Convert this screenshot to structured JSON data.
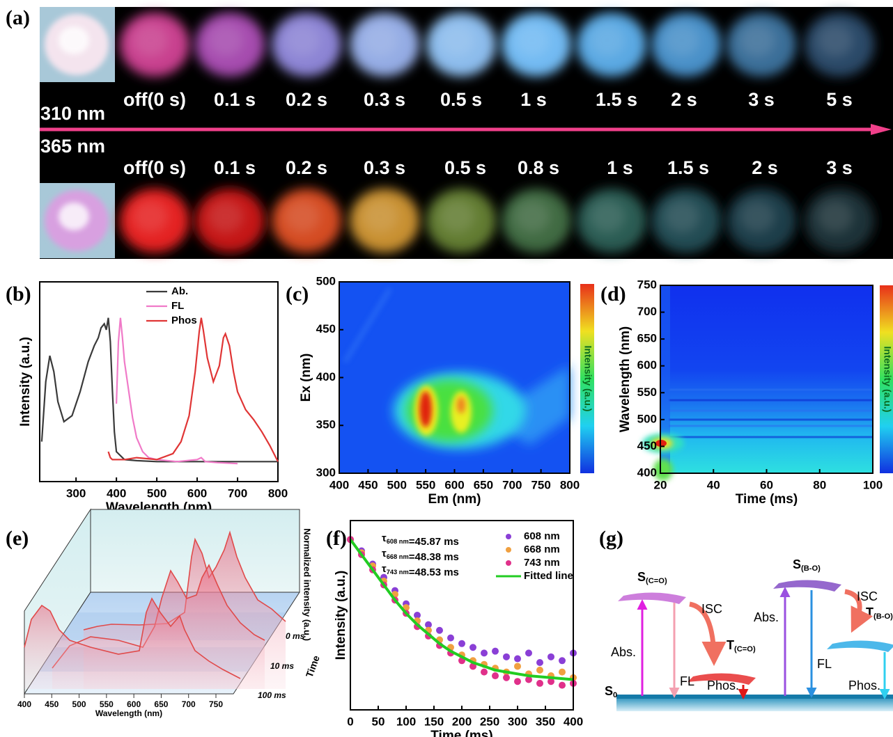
{
  "panel_labels": {
    "a": "(a)",
    "b": "(b)",
    "c": "(c)",
    "d": "(d)",
    "e": "(e)",
    "f": "(f)",
    "g": "(g)"
  },
  "photos": {
    "top_labels": [
      "off(0 s)",
      "0.1 s",
      "0.2 s",
      "0.3 s",
      "0.5 s",
      "1 s",
      "1.5 s",
      "2 s",
      "3 s",
      "5 s"
    ],
    "bottom_labels": [
      "off(0 s)",
      "0.1 s",
      "0.2 s",
      "0.3 s",
      "0.5 s",
      "0.8 s",
      "1 s",
      "1.5 s",
      "2 s",
      "3 s"
    ],
    "wavelength_top": "310 nm",
    "wavelength_bottom": "365 nm"
  },
  "chart_data": [
    {
      "type": "line",
      "xlabel": "Wavelength (nm)",
      "ylabel": "Intensity (a.u.)",
      "xlim": [
        210,
        800
      ],
      "ylim": [
        0,
        1
      ],
      "xticks": [
        300,
        400,
        500,
        600,
        700,
        800
      ],
      "legend": "top-center",
      "series": [
        {
          "name": "Ab.",
          "color": "#3a3a3a",
          "x": [
            215,
            225,
            235,
            245,
            255,
            270,
            290,
            310,
            330,
            345,
            355,
            362,
            370,
            375,
            380,
            385,
            390,
            395,
            400,
            420,
            450,
            500,
            600,
            700,
            800
          ],
          "values": [
            0.2,
            0.5,
            0.63,
            0.55,
            0.4,
            0.3,
            0.33,
            0.45,
            0.6,
            0.68,
            0.72,
            0.77,
            0.79,
            0.76,
            0.82,
            0.7,
            0.46,
            0.25,
            0.15,
            0.11,
            0.105,
            0.1,
            0.1,
            0.1,
            0.1
          ]
        },
        {
          "name": "FL",
          "color": "#f07ac8",
          "x": [
            400,
            405,
            410,
            415,
            420,
            430,
            440,
            450,
            465,
            480,
            500,
            550,
            600,
            610,
            620,
            650,
            700
          ],
          "values": [
            0.39,
            0.7,
            0.82,
            0.72,
            0.6,
            0.46,
            0.32,
            0.22,
            0.15,
            0.12,
            0.11,
            0.1,
            0.11,
            0.12,
            0.1,
            0.095,
            0.09
          ]
        },
        {
          "name": "Phos",
          "color": "#e03535",
          "x": [
            380,
            385,
            390,
            420,
            450,
            500,
            540,
            560,
            580,
            595,
            605,
            610,
            615,
            625,
            640,
            655,
            665,
            670,
            680,
            690,
            700,
            720,
            740,
            760,
            780,
            800
          ],
          "values": [
            0.15,
            0.12,
            0.11,
            0.11,
            0.12,
            0.11,
            0.14,
            0.2,
            0.33,
            0.55,
            0.75,
            0.82,
            0.76,
            0.62,
            0.5,
            0.58,
            0.72,
            0.74,
            0.68,
            0.55,
            0.45,
            0.36,
            0.31,
            0.25,
            0.18,
            0.1
          ]
        }
      ]
    },
    {
      "type": "heatmap",
      "xlabel": "Em (nm)",
      "ylabel": "Ex (nm)",
      "colorbar_label": "Intensity (a.u.)",
      "xlim": [
        400,
        800
      ],
      "ylim": [
        300,
        500
      ],
      "xticks": [
        400,
        450,
        500,
        550,
        600,
        650,
        700,
        750,
        800
      ],
      "yticks": [
        300,
        350,
        400,
        450,
        500
      ]
    },
    {
      "type": "heatmap",
      "xlabel": "Time (ms)",
      "ylabel": "Wavelength (nm)",
      "colorbar_label": "Intensity (a.u.)",
      "xlim": [
        20,
        100
      ],
      "ylim": [
        400,
        750
      ],
      "xticks": [
        20,
        40,
        60,
        80,
        100
      ],
      "yticks": [
        400,
        450,
        500,
        550,
        600,
        650,
        700,
        750
      ]
    },
    {
      "type": "waterfall",
      "xlabel": "Wavelength (nm)",
      "zlabel": "Normalized intensity (a.u.)",
      "ylabel": "Time",
      "xlim": [
        400,
        750
      ],
      "xticks": [
        400,
        450,
        500,
        550,
        600,
        650,
        700,
        750
      ],
      "time_labels": [
        "0 ms",
        "10 ms",
        "100 ms"
      ]
    },
    {
      "type": "scatter",
      "xlabel": "Time (ms)",
      "ylabel": "Intensity (a.u.)",
      "xlim": [
        0,
        400
      ],
      "ylim": [
        0,
        1
      ],
      "xticks": [
        0,
        50,
        100,
        150,
        200,
        250,
        300,
        350,
        400
      ],
      "legend": "top-right",
      "x": [
        0,
        20,
        40,
        60,
        80,
        100,
        120,
        140,
        160,
        180,
        200,
        220,
        240,
        260,
        280,
        300,
        320,
        340,
        360,
        380,
        400
      ],
      "series": [
        {
          "name": "608 nm",
          "color": "#8a3fd6",
          "values": [
            0.9,
            0.84,
            0.77,
            0.7,
            0.63,
            0.56,
            0.5,
            0.45,
            0.42,
            0.38,
            0.35,
            0.33,
            0.3,
            0.31,
            0.28,
            0.27,
            0.3,
            0.25,
            0.28,
            0.26,
            0.3
          ]
        },
        {
          "name": "668 nm",
          "color": "#f0a040",
          "values": [
            0.9,
            0.83,
            0.76,
            0.68,
            0.61,
            0.54,
            0.47,
            0.42,
            0.37,
            0.33,
            0.29,
            0.26,
            0.24,
            0.22,
            0.2,
            0.23,
            0.19,
            0.21,
            0.18,
            0.2,
            0.17
          ]
        },
        {
          "name": "743 nm",
          "color": "#e0308a",
          "values": [
            0.9,
            0.82,
            0.74,
            0.66,
            0.58,
            0.51,
            0.44,
            0.39,
            0.34,
            0.3,
            0.26,
            0.23,
            0.2,
            0.18,
            0.17,
            0.15,
            0.16,
            0.14,
            0.15,
            0.13,
            0.14
          ]
        },
        {
          "name": "Fitted line",
          "color": "#22cc22",
          "values": [
            0.9,
            0.82,
            0.74,
            0.66,
            0.58,
            0.51,
            0.45,
            0.4,
            0.35,
            0.31,
            0.28,
            0.25,
            0.23,
            0.21,
            0.2,
            0.19,
            0.18,
            0.175,
            0.17,
            0.165,
            0.16
          ]
        }
      ],
      "annotations": [
        {
          "symbol": "τ",
          "subscript": "608 nm",
          "text": "=45.87 ms"
        },
        {
          "symbol": "τ",
          "subscript": "668 nm",
          "text": "=48.38 ms"
        },
        {
          "symbol": "τ",
          "subscript": "743 nm",
          "text": "=48.53 ms"
        }
      ]
    }
  ],
  "diagram": {
    "s0": {
      "main": "S",
      "sub": "0"
    },
    "left": {
      "singlet": {
        "main": "S",
        "sub": "(C=O)"
      },
      "triplet": {
        "main": "T",
        "sub": "(C=O)"
      },
      "isc": "ISC",
      "abs": "Abs.",
      "fl": "FL",
      "phos": "Phos."
    },
    "right": {
      "singlet": {
        "main": "S",
        "sub": "(B-O)"
      },
      "triplet": {
        "main": "T",
        "sub": "(B-O)"
      },
      "isc": "ISC",
      "abs": "Abs.",
      "fl": "FL",
      "phos": "Phos."
    }
  }
}
